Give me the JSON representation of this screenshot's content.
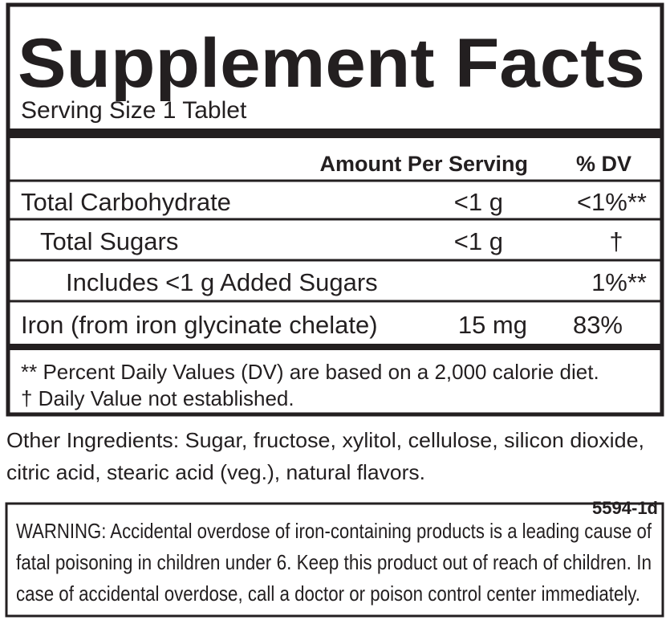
{
  "header": {
    "title": "Supplement Facts",
    "serving_size": "Serving Size 1 Tablet"
  },
  "table": {
    "columns": [
      "Amount Per Serving",
      "% DV"
    ],
    "rows": [
      {
        "name": "Total Carbohydrate",
        "amount": "<1 g",
        "dv": "<1%**"
      },
      {
        "name": "Total Sugars",
        "amount": "<1 g",
        "dv": "†"
      },
      {
        "name": "Includes  <1 g Added Sugars",
        "dv": "1%**"
      },
      {
        "name": "Iron (from iron glycinate chelate)",
        "amount": "15 mg",
        "dv": "83%"
      }
    ]
  },
  "footnotes": [
    "** Percent Daily Values (DV) are based on a 2,000 calorie diet.",
    "†  Daily Value not established."
  ],
  "other_ingredients": [
    "Other Ingredients: Sugar, fructose, xylitol, cellulose, silicon dioxide,",
    "citric acid, stearic acid (veg.), natural flavors."
  ],
  "code": "5594-1d",
  "warning": [
    "WARNING: Accidental overdose of iron-containing products is a leading cause of",
    "fatal poisoning in children under 6. Keep this product out of reach of children. In",
    "case of accidental overdose, call a doctor or poison control center immediately."
  ]
}
